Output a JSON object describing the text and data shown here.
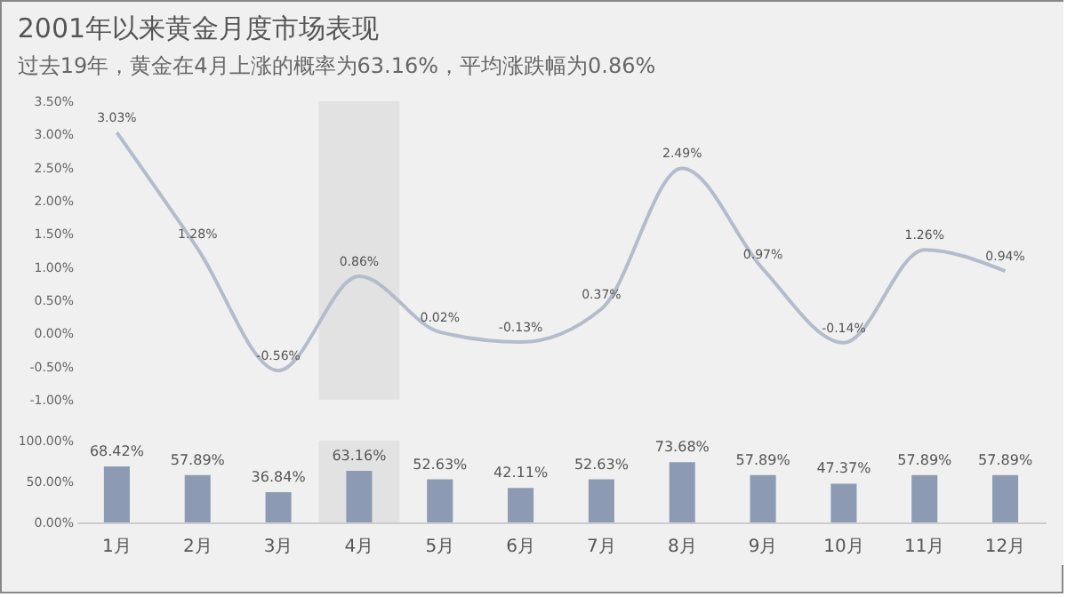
{
  "chart_data": [
    {
      "type": "line",
      "title": "2001年以来黄金月度市场表现",
      "subtitle": "过去19年，黄金在4月上涨的概率为63.16%，平均涨跌幅为0.86%",
      "categories": [
        "1月",
        "2月",
        "3月",
        "4月",
        "5月",
        "6月",
        "7月",
        "8月",
        "9月",
        "10月",
        "11月",
        "12月"
      ],
      "series": [
        {
          "color": "#b4bccb",
          "values": [
            3.03,
            1.28,
            -0.56,
            0.86,
            0.02,
            -0.13,
            0.37,
            2.49,
            0.97,
            -0.14,
            1.26,
            0.94
          ],
          "value_labels": [
            "3.03%",
            "1.28%",
            "-0.56%",
            "0.86%",
            "0.02%",
            "-0.13%",
            "0.37%",
            "2.49%",
            "0.97%",
            "-0.14%",
            "1.26%",
            "0.94%"
          ]
        }
      ],
      "ylim": [
        -1,
        3.5
      ],
      "yticks": [
        {
          "value": -1,
          "label": "-1.00%"
        },
        {
          "value": -0.5,
          "label": "-0.50%"
        },
        {
          "value": 0,
          "label": "0.00%"
        },
        {
          "value": 0.5,
          "label": "0.50%"
        },
        {
          "value": 1,
          "label": "1.00%"
        },
        {
          "value": 1.5,
          "label": "1.50%"
        },
        {
          "value": 2,
          "label": "2.00%"
        },
        {
          "value": 2.5,
          "label": "2.50%"
        },
        {
          "value": 3,
          "label": "3.00%"
        },
        {
          "value": 3.5,
          "label": "3.50%"
        }
      ],
      "bands": [
        {
          "axis": "x",
          "from": "4月",
          "to": "4月",
          "color": "#e2e2e2"
        }
      ],
      "tick_labels": "y",
      "grid": false,
      "marker": "none"
    },
    {
      "type": "bar",
      "categories": [
        "1月",
        "2月",
        "3月",
        "4月",
        "5月",
        "6月",
        "7月",
        "8月",
        "9月",
        "10月",
        "11月",
        "12月"
      ],
      "series": [
        {
          "color": "#8c9bb3",
          "values": [
            68.42,
            57.89,
            36.84,
            63.16,
            52.63,
            42.11,
            52.63,
            73.68,
            57.89,
            47.37,
            57.89,
            57.89
          ],
          "value_labels": [
            "68.42%",
            "57.89%",
            "36.84%",
            "63.16%",
            "52.63%",
            "42.11%",
            "52.63%",
            "73.68%",
            "57.89%",
            "47.37%",
            "57.89%",
            "57.89%"
          ]
        }
      ],
      "ylim": [
        0,
        100
      ],
      "yticks": [
        {
          "value": 0,
          "label": "0.00%"
        },
        {
          "value": 50,
          "label": "50.00%"
        },
        {
          "value": 100,
          "label": "100.00%"
        }
      ],
      "bands": [
        {
          "axis": "x",
          "from": "4月",
          "to": "4月",
          "color": "#e2e2e2"
        }
      ],
      "grid": false
    }
  ]
}
